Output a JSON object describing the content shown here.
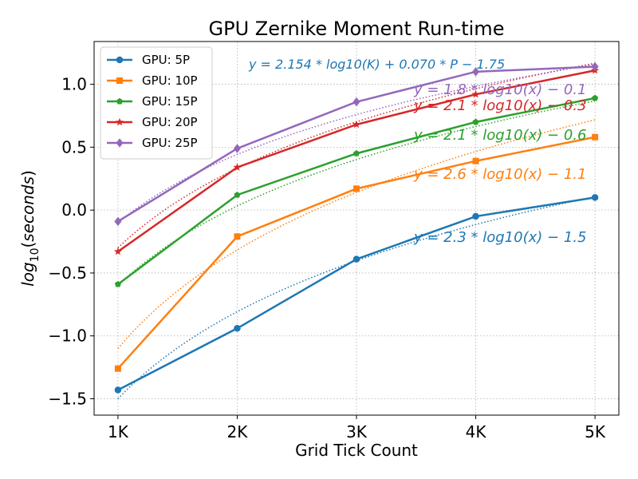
{
  "chart_data": {
    "type": "line",
    "title": "GPU Zernike Moment Run-time",
    "xlabel": "Grid Tick Count",
    "ylabel": "log10(seconds)",
    "x": [
      1,
      2,
      3,
      4,
      5
    ],
    "x_tick_labels": [
      "1K",
      "2K",
      "3K",
      "4K",
      "5K"
    ],
    "y_ticks": [
      -1.5,
      -1.0,
      -0.5,
      0.0,
      0.5,
      1.0
    ],
    "y_tick_labels": [
      "−1.5",
      "−1.0",
      "−0.5",
      "0.0",
      "0.5",
      "1.0"
    ],
    "xlim": [
      0.8,
      5.2
    ],
    "ylim": [
      -1.63,
      1.34
    ],
    "grid": true,
    "legend_position": "top-left",
    "global_fit_label": "y = 2.154 * log10(K) + 0.070 * P − 1.75",
    "series": [
      {
        "name": "GPU:  5P",
        "color": "#1f77b4",
        "marker": "circle",
        "values": [
          -1.43,
          -0.94,
          -0.39,
          -0.05,
          0.1
        ],
        "fit": {
          "slope": 2.3,
          "intercept": -1.5
        },
        "fit_label": "y = 2.3 * log10(x) − 1.5"
      },
      {
        "name": "GPU: 10P",
        "color": "#ff7f0e",
        "marker": "square",
        "values": [
          -1.26,
          -0.21,
          0.17,
          0.39,
          0.58
        ],
        "fit": {
          "slope": 2.6,
          "intercept": -1.1
        },
        "fit_label": "y = 2.6 * log10(x) − 1.1"
      },
      {
        "name": "GPU: 15P",
        "color": "#2ca02c",
        "marker": "pentagon",
        "values": [
          -0.59,
          0.12,
          0.45,
          0.7,
          0.89
        ],
        "fit": {
          "slope": 2.1,
          "intercept": -0.6
        },
        "fit_label": "y = 2.1 * log10(x) − 0.6"
      },
      {
        "name": "GPU: 20P",
        "color": "#d62728",
        "marker": "star",
        "values": [
          -0.33,
          0.34,
          0.68,
          0.92,
          1.11
        ],
        "fit": {
          "slope": 2.1,
          "intercept": -0.3
        },
        "fit_label": "y = 2.1 * log10(x) − 0.3"
      },
      {
        "name": "GPU: 25P",
        "color": "#9467bd",
        "marker": "diamond",
        "values": [
          -0.09,
          0.49,
          0.86,
          1.1,
          1.14
        ],
        "fit": {
          "slope": 1.8,
          "intercept": -0.1
        },
        "fit_label": "y = 1.8 * log10(x) − 0.1"
      }
    ]
  }
}
